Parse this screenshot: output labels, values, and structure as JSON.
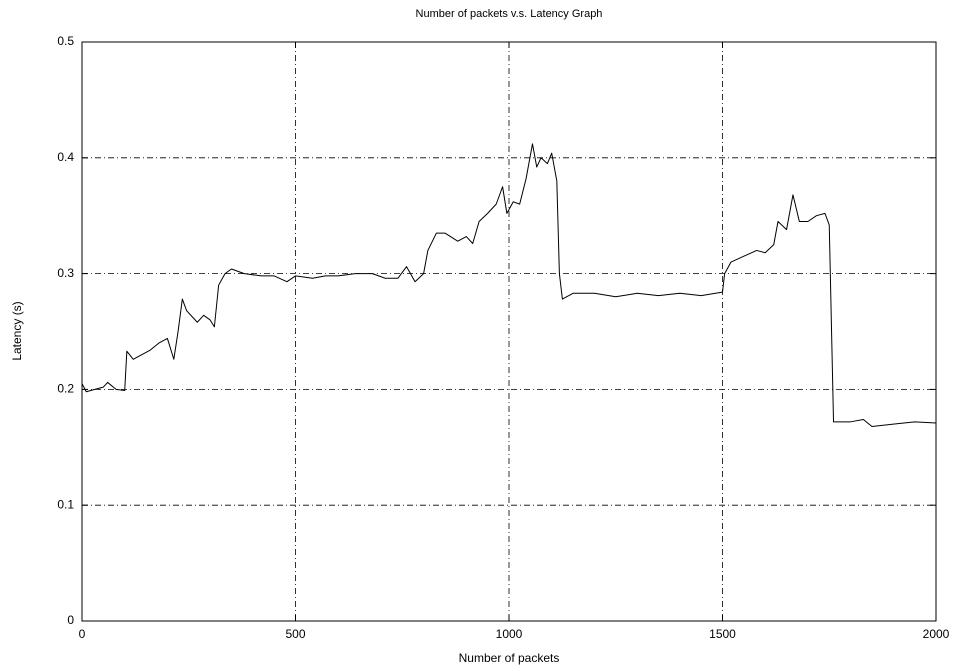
{
  "chart_data": {
    "type": "line",
    "title": "Number of packets v.s. Latency Graph",
    "xlabel": "Number of packets",
    "ylabel": "Latency (s)",
    "color": "#000000",
    "grid": true,
    "x": [
      0,
      10,
      30,
      50,
      60,
      80,
      100,
      105,
      120,
      140,
      160,
      180,
      200,
      215,
      225,
      235,
      245,
      260,
      270,
      285,
      300,
      310,
      320,
      335,
      350,
      380,
      420,
      450,
      480,
      500,
      540,
      570,
      600,
      640,
      680,
      710,
      740,
      760,
      780,
      800,
      810,
      830,
      850,
      880,
      900,
      915,
      930,
      950,
      970,
      985,
      995,
      1010,
      1025,
      1040,
      1055,
      1065,
      1075,
      1090,
      1100,
      1112,
      1118,
      1125,
      1150,
      1200,
      1250,
      1300,
      1350,
      1400,
      1450,
      1500,
      1505,
      1520,
      1550,
      1580,
      1600,
      1620,
      1630,
      1650,
      1665,
      1680,
      1700,
      1720,
      1740,
      1750,
      1760,
      1800,
      1830,
      1850,
      1900,
      1950,
      2000
    ],
    "values": [
      0.205,
      0.198,
      0.2,
      0.202,
      0.206,
      0.2,
      0.199,
      0.233,
      0.226,
      0.23,
      0.234,
      0.24,
      0.244,
      0.226,
      0.25,
      0.278,
      0.268,
      0.262,
      0.258,
      0.264,
      0.26,
      0.254,
      0.29,
      0.3,
      0.304,
      0.3,
      0.298,
      0.298,
      0.293,
      0.298,
      0.296,
      0.298,
      0.298,
      0.3,
      0.3,
      0.296,
      0.296,
      0.306,
      0.293,
      0.3,
      0.32,
      0.335,
      0.335,
      0.328,
      0.332,
      0.326,
      0.345,
      0.352,
      0.36,
      0.375,
      0.352,
      0.362,
      0.36,
      0.382,
      0.412,
      0.392,
      0.4,
      0.395,
      0.404,
      0.38,
      0.3,
      0.278,
      0.283,
      0.283,
      0.28,
      0.283,
      0.281,
      0.283,
      0.281,
      0.284,
      0.3,
      0.31,
      0.315,
      0.32,
      0.318,
      0.325,
      0.345,
      0.338,
      0.368,
      0.345,
      0.345,
      0.35,
      0.352,
      0.342,
      0.172,
      0.172,
      0.174,
      0.168,
      0.17,
      0.172,
      0.171
    ],
    "xlim": [
      0,
      2000
    ],
    "xticks": [
      0,
      500,
      1000,
      1500,
      2000
    ],
    "ylim": [
      0,
      0.5
    ],
    "yticks": [
      0,
      0.1,
      0.2,
      0.3,
      0.4,
      0.5
    ]
  }
}
